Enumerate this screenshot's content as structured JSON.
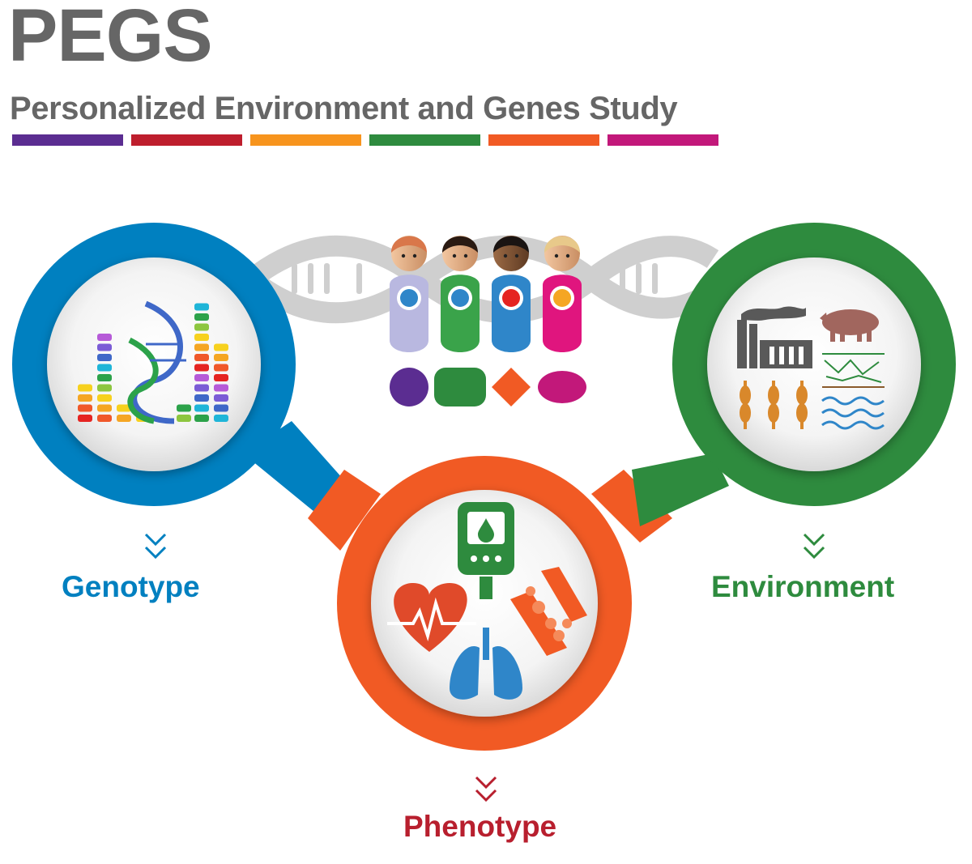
{
  "header": {
    "title": "PEGS",
    "subtitle": "Personalized Environment and Genes Study"
  },
  "color_bars": [
    "#5b2d91",
    "#be1e2d",
    "#f7941d",
    "#2e8b3e",
    "#f15a24",
    "#c2187a"
  ],
  "nodes": {
    "genotype": {
      "label": "Genotype",
      "color": "#0080c0",
      "icon": "dna-bar-chart-icon"
    },
    "environment": {
      "label": "Environment",
      "color": "#2e8b3e",
      "icon": "factory-pig-wheat-water-icon"
    },
    "phenotype": {
      "label": "Phenotype",
      "color": "#f15a24",
      "label_color": "#b81f2e",
      "icon": "glucose-heart-lungs-cells-icon"
    }
  },
  "people": [
    {
      "icon": "water-icon",
      "color": "#b9b8e0",
      "token_color": "#5b2d91",
      "token_shape": "circle"
    },
    {
      "icon": "dumbbell-icon",
      "color": "#3aa34a",
      "token_color": "#2e8b3e",
      "token_shape": "rounded-square"
    },
    {
      "icon": "apple-icon",
      "color": "#2f86c9",
      "token_color": "#f15a24",
      "token_shape": "diamond"
    },
    {
      "icon": "pill-icon",
      "color": "#e0157e",
      "token_color": "#c2187a",
      "token_shape": "ellipse"
    }
  ]
}
